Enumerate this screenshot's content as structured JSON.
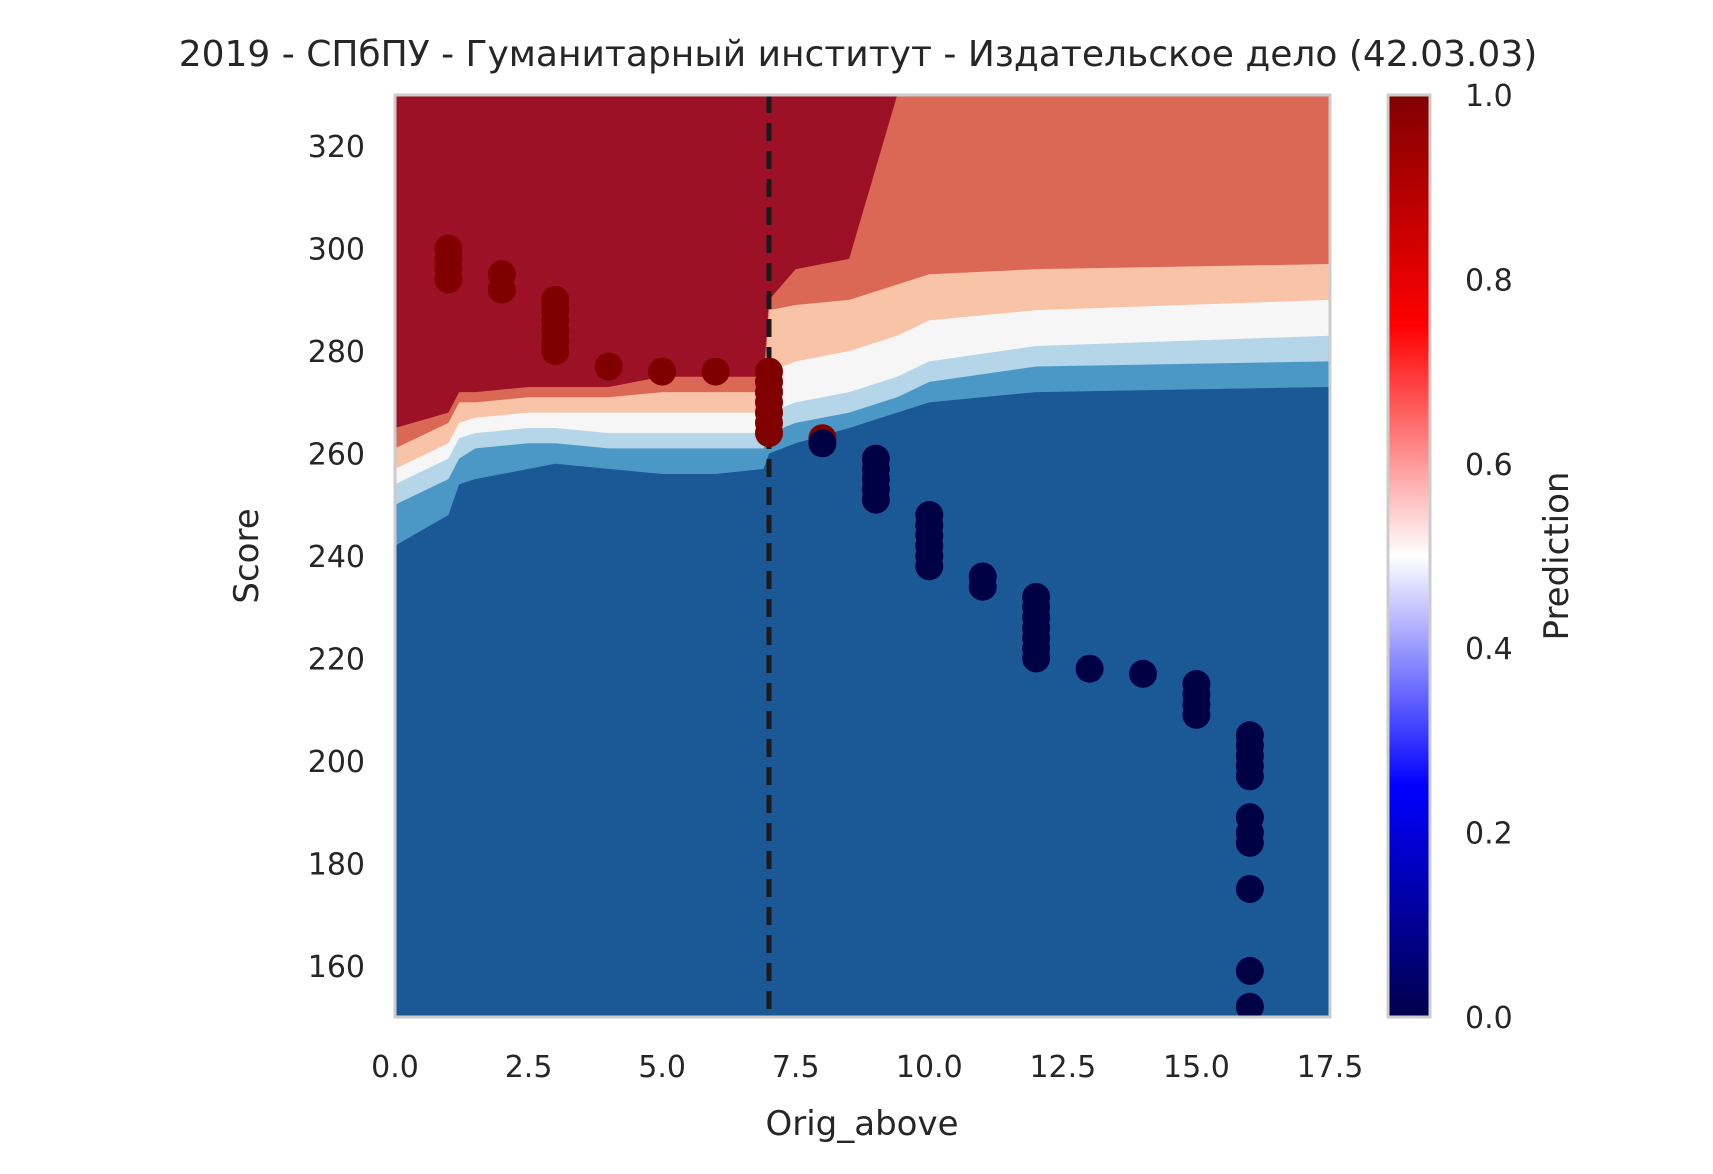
{
  "chart_data": {
    "type": "scatter",
    "title": "2019 - СПбПУ - Гуманитарный институт - Издательское дело (42.03.03)",
    "xlabel": "Orig_above",
    "ylabel": "Score",
    "xlim": [
      0,
      17.5
    ],
    "ylim": [
      150,
      330
    ],
    "x_ticks": [
      "0.0",
      "2.5",
      "5.0",
      "7.5",
      "10.0",
      "12.5",
      "15.0",
      "17.5"
    ],
    "x_tick_values": [
      0,
      2.5,
      5,
      7.5,
      10,
      12.5,
      15,
      17.5
    ],
    "y_ticks": [
      "160",
      "180",
      "200",
      "220",
      "240",
      "260",
      "280",
      "300",
      "320"
    ],
    "y_tick_values": [
      160,
      180,
      200,
      220,
      240,
      260,
      280,
      300,
      320
    ],
    "grid": false,
    "threshold_line": {
      "x": 7,
      "style": "dashed",
      "color": "#1a1a1a"
    },
    "decision_surface": {
      "description_levels": [
        0,
        0.2,
        0.4,
        0.5,
        0.6,
        0.8,
        1.0
      ],
      "level_colors": [
        "#1b5896",
        "#4b98c6",
        "#b5d5e8",
        "#f6f6f6",
        "#f9c3a8",
        "#db6854",
        "#9d1126"
      ],
      "boundaries_by_x": [
        {
          "x": 0.0,
          "y_vals": [
            242,
            250,
            254,
            257,
            261,
            265
          ]
        },
        {
          "x": 1.0,
          "y_vals": [
            248,
            255,
            259,
            262,
            266,
            268
          ]
        },
        {
          "x": 1.2,
          "y_vals": [
            254,
            259,
            263,
            266,
            270,
            272
          ]
        },
        {
          "x": 1.5,
          "y_vals": [
            255,
            261,
            264,
            267,
            270,
            272
          ]
        },
        {
          "x": 2.5,
          "y_vals": [
            257,
            262,
            265,
            268,
            271,
            273
          ]
        },
        {
          "x": 3.0,
          "y_vals": [
            258,
            262,
            265,
            268,
            271,
            273
          ]
        },
        {
          "x": 4.0,
          "y_vals": [
            257,
            261,
            264,
            268,
            271,
            273
          ]
        },
        {
          "x": 5.0,
          "y_vals": [
            256,
            261,
            264,
            268,
            272,
            275
          ]
        },
        {
          "x": 6.0,
          "y_vals": [
            256,
            261,
            264,
            268,
            272,
            275
          ]
        },
        {
          "x": 6.9,
          "y_vals": [
            257,
            261,
            264,
            268,
            272,
            275
          ]
        },
        {
          "x": 7.0,
          "y_vals": [
            260,
            264,
            268,
            276,
            288,
            290
          ]
        },
        {
          "x": 7.5,
          "y_vals": [
            262,
            266,
            270,
            278,
            289,
            296
          ]
        },
        {
          "x": 8.5,
          "y_vals": [
            265,
            268,
            272,
            280,
            290,
            298
          ]
        },
        {
          "x": 9.4,
          "y_vals": [
            268,
            271,
            275,
            283,
            293,
            330
          ]
        },
        {
          "x": 10.0,
          "y_vals": [
            270,
            274,
            278,
            286,
            295,
            330
          ]
        },
        {
          "x": 12.0,
          "y_vals": [
            272,
            277,
            281,
            288,
            296,
            330
          ]
        },
        {
          "x": 17.5,
          "y_vals": [
            273,
            278,
            283,
            290,
            297,
            330
          ]
        }
      ]
    },
    "colorbar": {
      "label": "Prediction",
      "ticks": [
        "0.0",
        "0.2",
        "0.4",
        "0.6",
        "0.8",
        "1.0"
      ],
      "tick_values": [
        0,
        0.2,
        0.4,
        0.6,
        0.8,
        1.0
      ],
      "colormap": "seismic"
    },
    "series": [
      {
        "class": "admitted",
        "color": "#800000",
        "points": [
          [
            1,
            300
          ],
          [
            1,
            298
          ],
          [
            1,
            296
          ],
          [
            1,
            294
          ],
          [
            2,
            295
          ],
          [
            2,
            292
          ],
          [
            3,
            290
          ],
          [
            3,
            288
          ],
          [
            3,
            286
          ],
          [
            3,
            284
          ],
          [
            3,
            282
          ],
          [
            3,
            280
          ],
          [
            4,
            277
          ],
          [
            5,
            276
          ],
          [
            6,
            276
          ],
          [
            7,
            276
          ],
          [
            7,
            274
          ],
          [
            7,
            272
          ],
          [
            7,
            270
          ],
          [
            7,
            268
          ],
          [
            7,
            266
          ],
          [
            7,
            264
          ],
          [
            8,
            263
          ]
        ]
      },
      {
        "class": "not_admitted",
        "color": "#000044",
        "points": [
          [
            8,
            262
          ],
          [
            9,
            259
          ],
          [
            9,
            257
          ],
          [
            9,
            255
          ],
          [
            9,
            253
          ],
          [
            9,
            251
          ],
          [
            10,
            248
          ],
          [
            10,
            246
          ],
          [
            10,
            244
          ],
          [
            10,
            242
          ],
          [
            10,
            240
          ],
          [
            10,
            238
          ],
          [
            11,
            236
          ],
          [
            11,
            234
          ],
          [
            12,
            232
          ],
          [
            12,
            230
          ],
          [
            12,
            228
          ],
          [
            12,
            226
          ],
          [
            12,
            224
          ],
          [
            12,
            222
          ],
          [
            12,
            220
          ],
          [
            13,
            218
          ],
          [
            14,
            217
          ],
          [
            15,
            215
          ],
          [
            15,
            213
          ],
          [
            15,
            211
          ],
          [
            15,
            209
          ],
          [
            16,
            205
          ],
          [
            16,
            203
          ],
          [
            16,
            201
          ],
          [
            16,
            199
          ],
          [
            16,
            197
          ],
          [
            16,
            189
          ],
          [
            16,
            186
          ],
          [
            16,
            184
          ],
          [
            16,
            175
          ],
          [
            16,
            159
          ],
          [
            16,
            152
          ]
        ]
      }
    ]
  }
}
